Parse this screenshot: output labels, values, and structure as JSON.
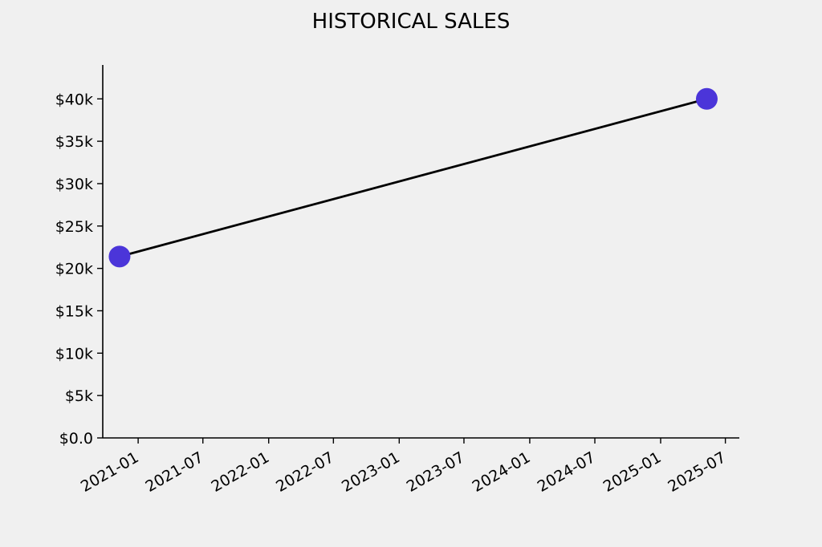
{
  "chart_data": {
    "type": "line",
    "title": "HISTORICAL SALES",
    "xlabel": "",
    "ylabel": "",
    "x_ticks": [
      "2021-01",
      "2021-07",
      "2022-01",
      "2022-07",
      "2023-01",
      "2023-07",
      "2024-01",
      "2024-07",
      "2025-01",
      "2025-07"
    ],
    "y_ticks": [
      "$0.0",
      "$5k",
      "$10k",
      "$15k",
      "$20k",
      "$25k",
      "$30k",
      "$35k",
      "$40k"
    ],
    "xlim": [
      "2020-09-24",
      "2025-08-09"
    ],
    "ylim": [
      0,
      44000
    ],
    "grid": false,
    "series": [
      {
        "values": [
          {
            "x": "2020-11-10",
            "y": 21400
          },
          {
            "x": "2025-05-10",
            "y": 40000
          }
        ]
      }
    ],
    "colors": {
      "line": "#000000",
      "marker": "#4b35d9",
      "background": "#f0f0f0",
      "axis": "#000000"
    }
  }
}
